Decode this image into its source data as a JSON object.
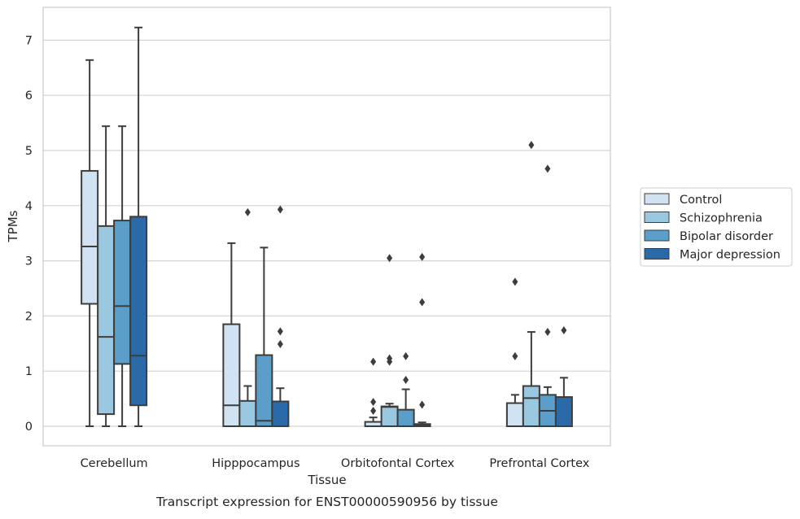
{
  "chart_data": {
    "type": "box",
    "caption": "Transcript expression for ENST00000590956 by tissue",
    "xlabel": "Tissue",
    "ylabel": "TPMs",
    "ylim": [
      -0.35,
      7.6
    ],
    "yticks": [
      0,
      1,
      2,
      3,
      4,
      5,
      6,
      7
    ],
    "grid": "horizontal",
    "legend_placement": "right",
    "categories": [
      "Cerebellum",
      "Hipppocampus",
      "Orbitofontal Cortex",
      "Prefrontal Cortex"
    ],
    "series": [
      {
        "name": "Control",
        "color": "#d1e2f2",
        "boxes": [
          {
            "min": 0,
            "q1": 2.22,
            "median": 3.26,
            "q3": 4.63,
            "max": 6.64,
            "outliers": []
          },
          {
            "min": 0,
            "q1": 0,
            "median": 0.38,
            "q3": 1.85,
            "max": 3.32,
            "outliers": []
          },
          {
            "min": 0,
            "q1": 0,
            "median": 0,
            "q3": 0.08,
            "max": 0.16,
            "outliers": [
              0.28,
              0.44,
              1.17
            ]
          },
          {
            "min": 0,
            "q1": 0,
            "median": 0,
            "q3": 0.42,
            "max": 0.57,
            "outliers": [
              1.27,
              2.62
            ]
          }
        ]
      },
      {
        "name": "Schizophrenia",
        "color": "#9ac8e0",
        "boxes": [
          {
            "min": 0,
            "q1": 0.22,
            "median": 1.62,
            "q3": 3.63,
            "max": 5.44,
            "outliers": []
          },
          {
            "min": 0,
            "q1": 0,
            "median": 0,
            "q3": 0.46,
            "max": 0.73,
            "outliers": [
              3.88
            ]
          },
          {
            "min": 0,
            "q1": 0,
            "median": 0.35,
            "q3": 0.36,
            "max": 0.41,
            "outliers": [
              1.17,
              1.23,
              3.05
            ]
          },
          {
            "min": 0,
            "q1": 0,
            "median": 0.51,
            "q3": 0.73,
            "max": 1.71,
            "outliers": [
              5.1
            ]
          }
        ]
      },
      {
        "name": "Bipolar disorder",
        "color": "#5a9ec9",
        "boxes": [
          {
            "min": 0,
            "q1": 1.13,
            "median": 2.18,
            "q3": 3.73,
            "max": 5.44,
            "outliers": []
          },
          {
            "min": 0,
            "q1": 0,
            "median": 0.1,
            "q3": 1.29,
            "max": 3.24,
            "outliers": []
          },
          {
            "min": 0,
            "q1": 0,
            "median": 0,
            "q3": 0.3,
            "max": 0.67,
            "outliers": [
              0.84,
              1.27
            ]
          },
          {
            "min": 0,
            "q1": 0,
            "median": 0.28,
            "q3": 0.57,
            "max": 0.71,
            "outliers": [
              1.71,
              4.67
            ]
          }
        ]
      },
      {
        "name": "Major depression",
        "color": "#2a6aa8",
        "boxes": [
          {
            "min": 0,
            "q1": 0.38,
            "median": 1.28,
            "q3": 3.8,
            "max": 7.23,
            "outliers": []
          },
          {
            "min": 0,
            "q1": 0,
            "median": 0,
            "q3": 0.45,
            "max": 0.69,
            "outliers": [
              1.49,
              1.72,
              3.93
            ]
          },
          {
            "min": 0,
            "q1": 0,
            "median": 0.02,
            "q3": 0.04,
            "max": 0.07,
            "outliers": [
              0.39,
              2.25,
              3.07
            ]
          },
          {
            "min": 0,
            "q1": 0,
            "median": 0,
            "q3": 0.53,
            "max": 0.88,
            "outliers": [
              1.74
            ]
          }
        ]
      }
    ]
  }
}
